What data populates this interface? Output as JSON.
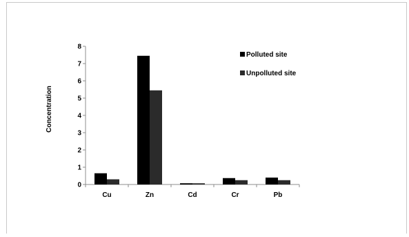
{
  "chart_data": {
    "type": "bar",
    "title": "",
    "xlabel": "",
    "ylabel": "Concentration",
    "categories": [
      "Cu",
      "Zn",
      "Cd",
      "Cr",
      "Pb"
    ],
    "series": [
      {
        "name": "Polluted site",
        "values": [
          0.65,
          7.45,
          0.07,
          0.37,
          0.4
        ],
        "color": "#000000"
      },
      {
        "name": "Unpolluted site",
        "values": [
          0.3,
          5.45,
          0.07,
          0.25,
          0.25
        ],
        "color": "#2b2b2b"
      }
    ],
    "ylim": [
      0,
      8
    ],
    "yticks": [
      0,
      1,
      2,
      3,
      4,
      5,
      6,
      7,
      8
    ],
    "grid": false,
    "legend_position": "top-right"
  }
}
